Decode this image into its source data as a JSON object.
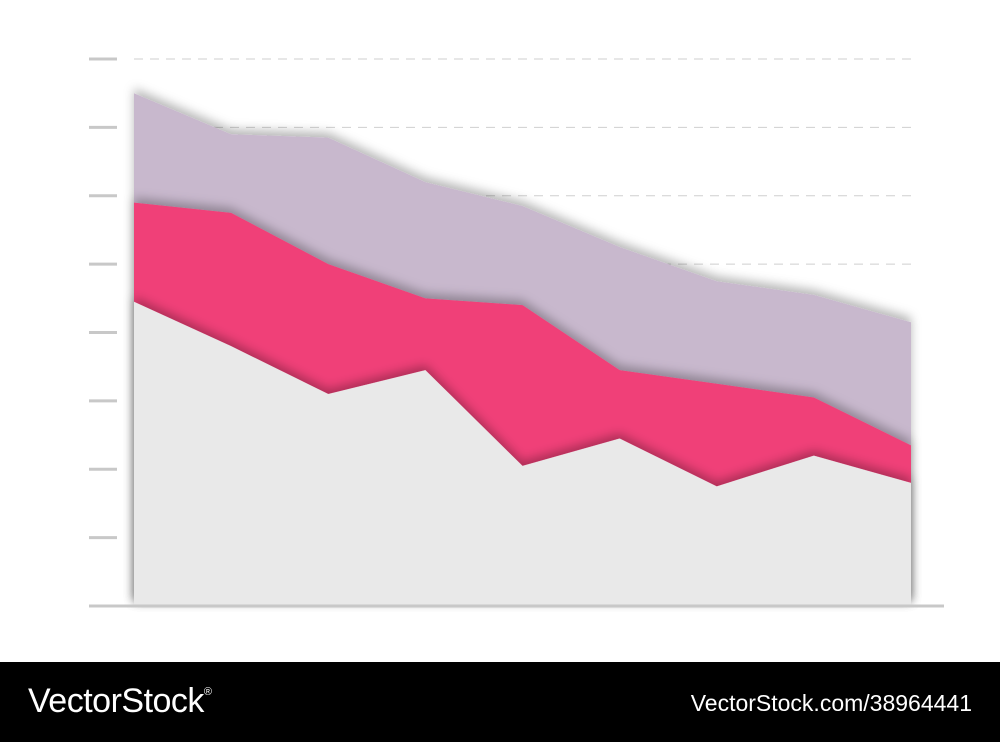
{
  "chart_data": {
    "type": "area",
    "stacked": true,
    "x": [
      1,
      2,
      3,
      4,
      5,
      6,
      7,
      8,
      9
    ],
    "series": [
      {
        "color": "#e9e9e9",
        "values": [
          4.45,
          3.8,
          3.1,
          3.45,
          2.05,
          2.45,
          1.75,
          2.2,
          1.8
        ]
      },
      {
        "color": "#f03f78",
        "values": [
          1.45,
          1.95,
          1.9,
          1.05,
          2.35,
          1.0,
          1.5,
          0.85,
          0.55
        ]
      },
      {
        "color": "#c8b8cd",
        "values": [
          1.6,
          1.15,
          1.85,
          1.7,
          1.45,
          1.8,
          1.5,
          1.5,
          1.8
        ]
      }
    ],
    "ylim": [
      0,
      8
    ],
    "yticks": [
      0,
      1,
      2,
      3,
      4,
      5,
      6,
      7,
      8
    ],
    "grid": true,
    "grid_style": "dashed",
    "title": "",
    "xlabel": "",
    "ylabel": "",
    "legend": "none"
  },
  "footer": {
    "brand": "VectorStock",
    "brand_mark": "®",
    "image_id": "VectorStock.com/38964441"
  }
}
